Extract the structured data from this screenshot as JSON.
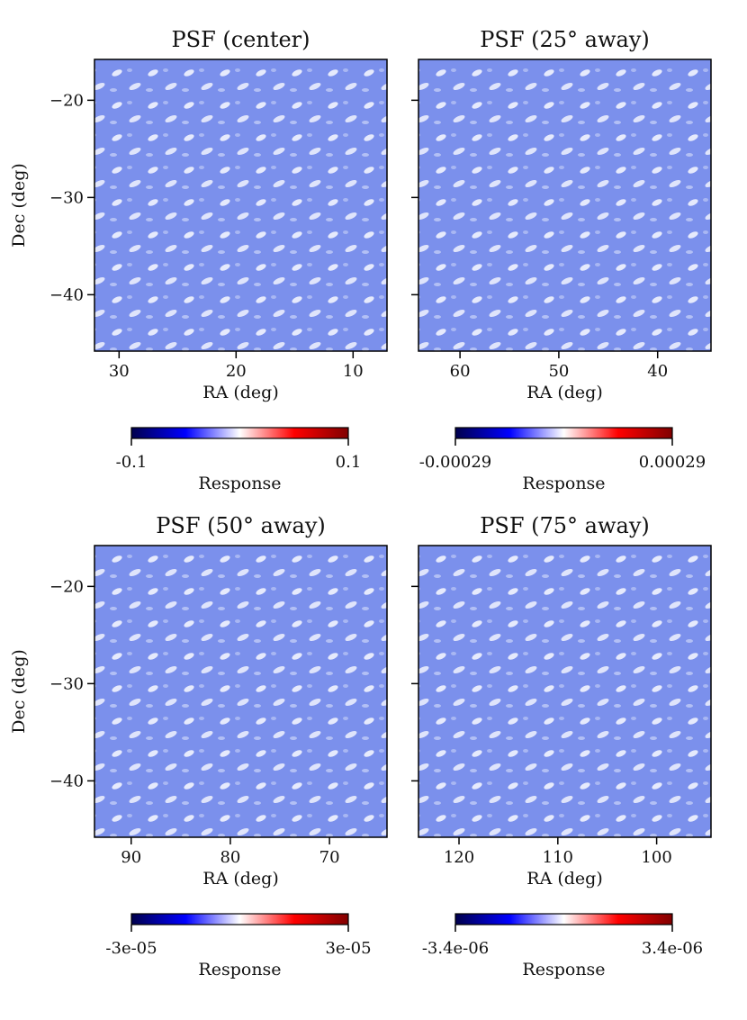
{
  "chart_data": [
    {
      "type": "image",
      "title": "PSF (center)",
      "xlabel": "RA (deg)",
      "ylabel": "Dec (deg)",
      "xlim": [
        32.1,
        7.1
      ],
      "xticks": [
        30,
        20,
        10
      ],
      "ylim": [
        -45.8,
        -15.8
      ],
      "yticks": [
        {
          "value": -20,
          "label": "−20"
        },
        {
          "value": -30,
          "label": "−30"
        },
        {
          "value": -40,
          "label": "−40"
        }
      ],
      "ytick_labels": true,
      "colorbar": {
        "label": "Response",
        "cmap": "seismic",
        "lim": [
          -0.1,
          0.1
        ],
        "ticks": [
          -0.1,
          0.1
        ]
      }
    },
    {
      "type": "image",
      "title": "PSF (25° away)",
      "xlabel": "RA (deg)",
      "xlim": [
        64.2,
        34.6
      ],
      "xticks": [
        60,
        50,
        40
      ],
      "ylim": [
        -45.8,
        -15.8
      ],
      "yticks": [
        -20,
        -30,
        -40
      ],
      "ytick_labels": false,
      "colorbar": {
        "label": "Response",
        "cmap": "seismic",
        "lim": [
          -0.00029,
          0.00029
        ],
        "ticks": [
          -0.00029,
          0.00029
        ]
      }
    },
    {
      "type": "image",
      "title": "PSF (50° away)",
      "xlabel": "RA (deg)",
      "ylabel": "Dec (deg)",
      "xlim": [
        93.7,
        64.2
      ],
      "xticks": [
        90,
        80,
        70
      ],
      "ylim": [
        -45.8,
        -15.8
      ],
      "yticks": [
        {
          "value": -20,
          "label": "−20"
        },
        {
          "value": -30,
          "label": "−30"
        },
        {
          "value": -40,
          "label": "−40"
        }
      ],
      "ytick_labels": true,
      "colorbar": {
        "label": "Response",
        "cmap": "seismic",
        "lim": [
          -3e-05,
          3e-05
        ],
        "ticks": [
          {
            "value": -3e-05,
            "label": "-3e-05"
          },
          {
            "value": 3e-05,
            "label": "3e-05"
          }
        ]
      }
    },
    {
      "type": "image",
      "title": "PSF (75° away)",
      "xlabel": "RA (deg)",
      "xlim": [
        124.1,
        94.5
      ],
      "xticks": [
        120,
        110,
        100
      ],
      "ylim": [
        -45.8,
        -15.8
      ],
      "yticks": [
        -20,
        -30,
        -40
      ],
      "ytick_labels": false,
      "colorbar": {
        "label": "Response",
        "cmap": "seismic",
        "lim": [
          -3.4e-06,
          3.4e-06
        ],
        "ticks": [
          {
            "value": -3.4e-06,
            "label": "-3.4e-06"
          },
          {
            "value": 3.4e-06,
            "label": "3.4e-06"
          }
        ]
      }
    }
  ]
}
